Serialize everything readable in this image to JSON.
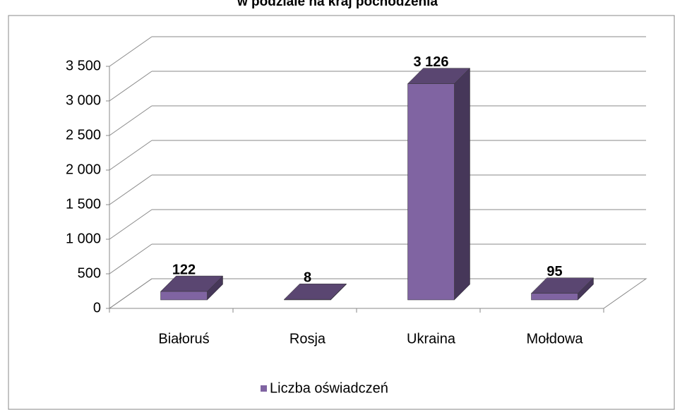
{
  "chart_data": {
    "type": "bar3d",
    "title": "w podziale na kraj pochodzenia",
    "categories": [
      "Białoruś",
      "Rosja",
      "Ukraina",
      "Mołdowa"
    ],
    "series": [
      {
        "name": "Liczba oświadczeń",
        "color": "#8064a2",
        "values": [
          122,
          8,
          3126,
          95
        ],
        "value_labels": [
          "122",
          "8",
          "3 126",
          "95"
        ]
      }
    ],
    "ylim": [
      0,
      3500
    ],
    "yticks": [
      0,
      500,
      {
        "value": 1000,
        "label": "1 000"
      },
      {
        "value": 1500,
        "label": "1 500"
      },
      {
        "value": 2000,
        "label": "2 000"
      },
      {
        "value": 2500,
        "label": "2 500"
      },
      {
        "value": 3000,
        "label": "3 000"
      },
      {
        "value": 3500,
        "label": "3 500"
      }
    ],
    "grid": true,
    "legend": "bottom"
  }
}
